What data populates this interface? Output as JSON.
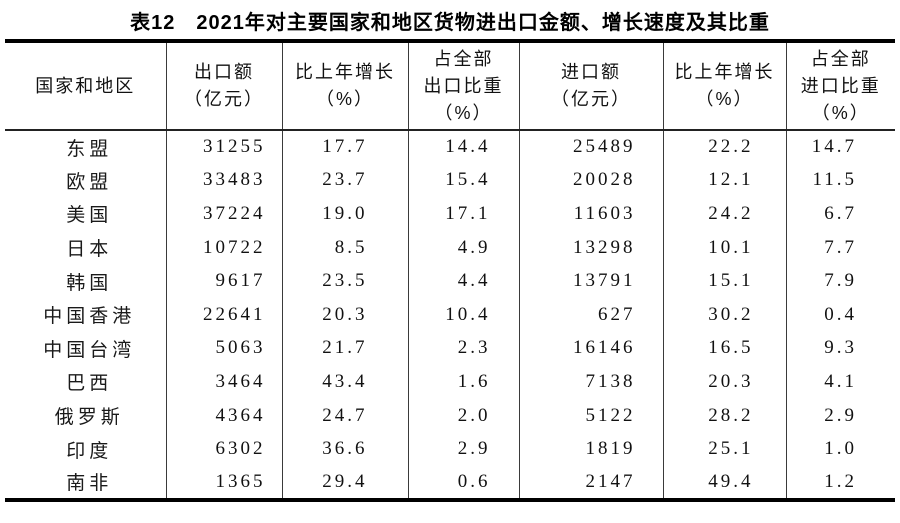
{
  "title": "表12　2021年对主要国家和地区货物进出口金额、增长速度及其比重",
  "colors": {
    "background": "#ffffff",
    "border_thick": "#000000",
    "border_thin": "#3a3a3a",
    "text": "#1a1a1a"
  },
  "table": {
    "columns": [
      {
        "id": "region",
        "lines": [
          "国家和地区"
        ]
      },
      {
        "id": "export_value",
        "lines": [
          "出口额",
          "（亿元）"
        ]
      },
      {
        "id": "export_growth",
        "lines": [
          "比上年增长",
          "（%）"
        ]
      },
      {
        "id": "export_share",
        "lines": [
          "占全部",
          "出口比重",
          "（%）"
        ]
      },
      {
        "id": "import_value",
        "lines": [
          "进口额",
          "（亿元）"
        ]
      },
      {
        "id": "import_growth",
        "lines": [
          "比上年增长",
          "（%）"
        ]
      },
      {
        "id": "import_share",
        "lines": [
          "占全部",
          "进口比重",
          "（%）"
        ]
      }
    ],
    "rows": [
      {
        "region": "东盟",
        "export_value": "31255",
        "export_growth": "17.7",
        "export_share": "14.4",
        "import_value": "25489",
        "import_growth": "22.2",
        "import_share": "14.7"
      },
      {
        "region": "欧盟",
        "export_value": "33483",
        "export_growth": "23.7",
        "export_share": "15.4",
        "import_value": "20028",
        "import_growth": "12.1",
        "import_share": "11.5"
      },
      {
        "region": "美国",
        "export_value": "37224",
        "export_growth": "19.0",
        "export_share": "17.1",
        "import_value": "11603",
        "import_growth": "24.2",
        "import_share": "6.7"
      },
      {
        "region": "日本",
        "export_value": "10722",
        "export_growth": "8.5",
        "export_share": "4.9",
        "import_value": "13298",
        "import_growth": "10.1",
        "import_share": "7.7"
      },
      {
        "region": "韩国",
        "export_value": "9617",
        "export_growth": "23.5",
        "export_share": "4.4",
        "import_value": "13791",
        "import_growth": "15.1",
        "import_share": "7.9"
      },
      {
        "region": "中国香港",
        "export_value": "22641",
        "export_growth": "20.3",
        "export_share": "10.4",
        "import_value": "627",
        "import_growth": "30.2",
        "import_share": "0.4"
      },
      {
        "region": "中国台湾",
        "export_value": "5063",
        "export_growth": "21.7",
        "export_share": "2.3",
        "import_value": "16146",
        "import_growth": "16.5",
        "import_share": "9.3"
      },
      {
        "region": "巴西",
        "export_value": "3464",
        "export_growth": "43.4",
        "export_share": "1.6",
        "import_value": "7138",
        "import_growth": "20.3",
        "import_share": "4.1"
      },
      {
        "region": "俄罗斯",
        "export_value": "4364",
        "export_growth": "24.7",
        "export_share": "2.0",
        "import_value": "5122",
        "import_growth": "28.2",
        "import_share": "2.9"
      },
      {
        "region": "印度",
        "export_value": "6302",
        "export_growth": "36.6",
        "export_share": "2.9",
        "import_value": "1819",
        "import_growth": "25.1",
        "import_share": "1.0"
      },
      {
        "region": "南非",
        "export_value": "1365",
        "export_growth": "29.4",
        "export_share": "0.6",
        "import_value": "2147",
        "import_growth": "49.4",
        "import_share": "1.2"
      }
    ]
  }
}
